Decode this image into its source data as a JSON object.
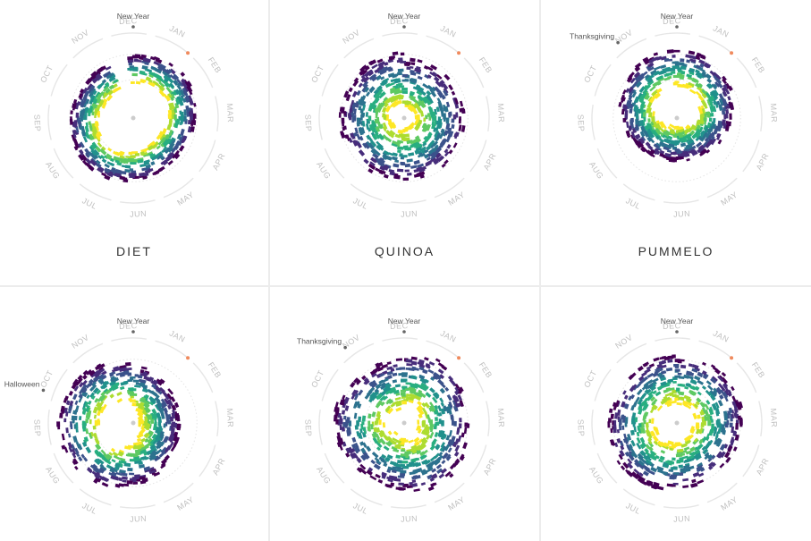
{
  "months": [
    "JAN",
    "FEB",
    "MAR",
    "APR",
    "MAY",
    "JUN",
    "JUL",
    "AUG",
    "SEP",
    "OCT",
    "NOV",
    "DEC"
  ],
  "colors": {
    "viridis": [
      "#440154",
      "#472d7b",
      "#3b528b",
      "#2c728e",
      "#21918c",
      "#28ae80",
      "#5ec962",
      "#addc30",
      "#fde725"
    ],
    "new_year_dot": "#666666",
    "jan_marker": "#f08a5d",
    "ring": "#e6e6e6",
    "center_dot": "#cccccc"
  },
  "chart_data": [
    {
      "type": "radial",
      "title": "DIET",
      "event_label": "New Year",
      "annotation": {
        "label": "",
        "angle_deg": 0
      },
      "shape": "ring-dec-gap"
    },
    {
      "type": "radial",
      "title": "QUINOA",
      "event_label": "New Year",
      "annotation": {
        "label": "",
        "angle_deg": 0
      },
      "shape": "spiral"
    },
    {
      "type": "radial",
      "title": "PUMMELO",
      "event_label": "New Year",
      "annotation": {
        "label": "Thanksgiving",
        "angle_deg": -38
      },
      "shape": "dense-top"
    },
    {
      "type": "radial",
      "title": "",
      "event_label": "New Year",
      "annotation": {
        "label": "Halloween",
        "angle_deg": -70
      },
      "shape": "left-heavy"
    },
    {
      "type": "radial",
      "title": "",
      "event_label": "New Year",
      "annotation": {
        "label": "Thanksgiving",
        "angle_deg": -38
      },
      "shape": "full"
    },
    {
      "type": "radial",
      "title": "",
      "event_label": "New Year",
      "annotation": {
        "label": "",
        "angle_deg": 0
      },
      "shape": "spiral2"
    }
  ]
}
